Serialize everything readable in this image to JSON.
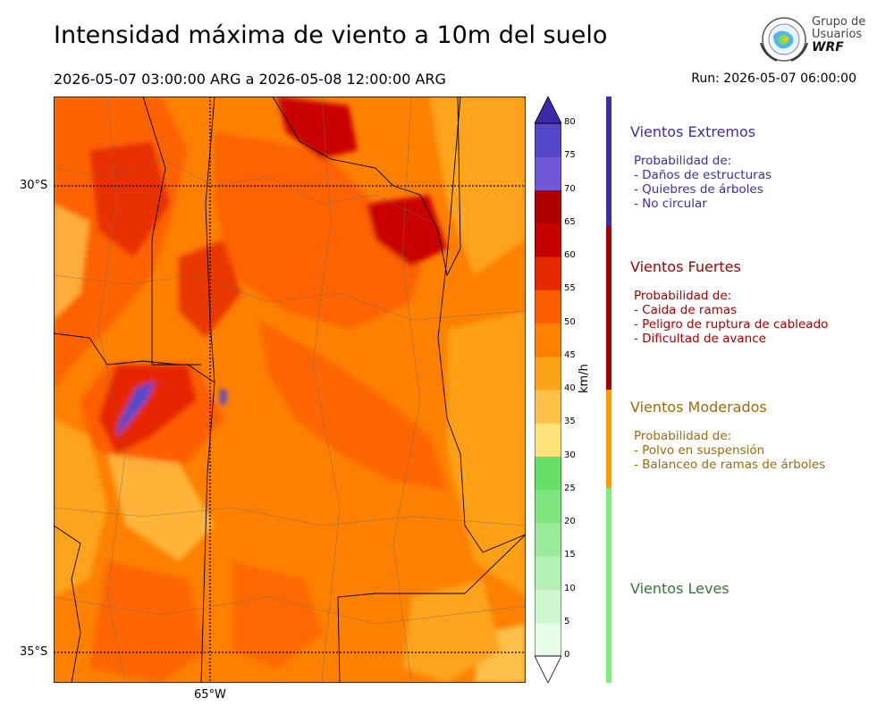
{
  "header": {
    "title": "Intensidad máxima de viento a 10m del suelo",
    "period": "2026-05-07 03:00:00 ARG  a  2026-05-08 12:00:00 ARG",
    "run": "Run: 2026-05-07 06:00:00"
  },
  "logo": {
    "line1": "Grupo de",
    "line2": "Usuarios",
    "line3": "WRF"
  },
  "map": {
    "lat_labels": [
      "30°S",
      "35°S"
    ],
    "lon_labels": [
      "65°W"
    ]
  },
  "colorbar": {
    "unit": "km/h",
    "ticks": [
      "0",
      "5",
      "10",
      "15",
      "20",
      "25",
      "30",
      "35",
      "40",
      "45",
      "50",
      "55",
      "60",
      "65",
      "70",
      "75",
      "80"
    ],
    "colors": [
      "#e6fce6",
      "#ccf7cc",
      "#b3f0b3",
      "#99ea99",
      "#80e680",
      "#66e066",
      "#fde27a",
      "#fec049",
      "#fda31a",
      "#fd8000",
      "#fd5e00",
      "#e52800",
      "#c90000",
      "#b00000",
      "#7158d8",
      "#5548c8",
      "#4333b3"
    ],
    "extend_over_color": "#3a2aa8"
  },
  "categories": [
    {
      "title": "Vientos Extremos",
      "color": "#3e2bb0",
      "prob": "Probabilidad de:",
      "items": [
        "- Daños de estructuras",
        "- Quiebres de árboles",
        "- No circular"
      ]
    },
    {
      "title": "Vientos Fuertes",
      "color": "#a80000",
      "prob": "Probabilidad de:",
      "items": [
        "- Caida de ramas",
        "- Peligro de ruptura de cableado",
        "- Dificultad de avance"
      ]
    },
    {
      "title": "Vientos Moderados",
      "color": "#a36a00",
      "bar_color": "#ff9900",
      "prob": "Probabilidad de:",
      "items": [
        "- Polvo en suspensión",
        "- Balanceo de ramas de árboles"
      ]
    },
    {
      "title": "Vientos Leves",
      "color": "#2e7a2e",
      "bar_color": "#7af07a",
      "prob": "",
      "items": []
    }
  ]
}
